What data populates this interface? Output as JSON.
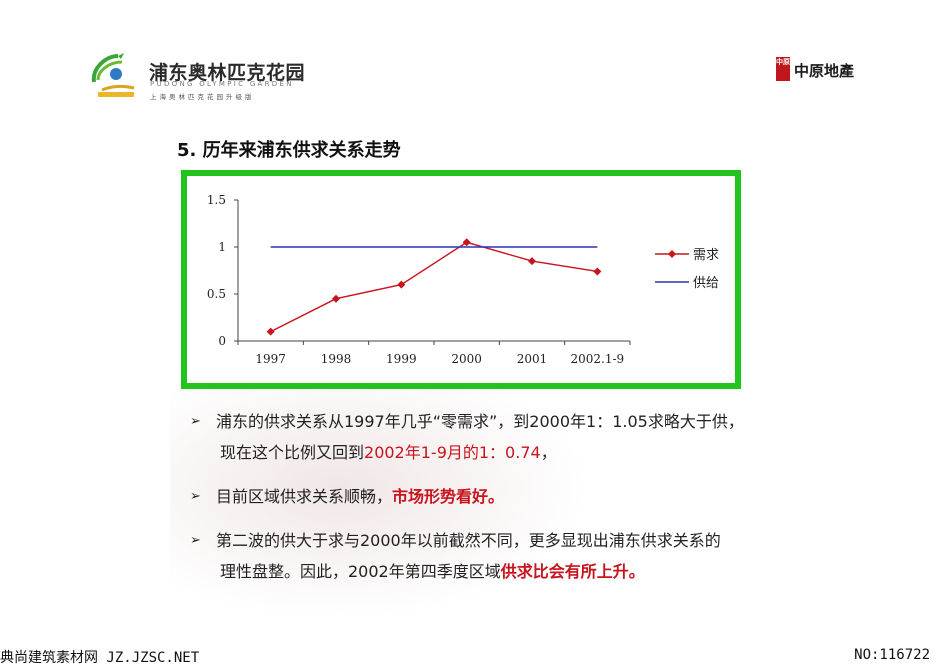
{
  "header": {
    "logo_cn": "浦东奥林匹克花园",
    "logo_en": "PUDONG OLYMPIC GARDEN",
    "logo_sub": "上海奥林匹克花园升级版",
    "brand_box": "中原",
    "brand_text": "中原地產"
  },
  "section_title": "5. 历年来浦东供求关系走势",
  "chart_data": {
    "type": "line",
    "categories": [
      "1997",
      "1998",
      "1999",
      "2000",
      "2001",
      "2002.1-9"
    ],
    "y_ticks": [
      "0",
      "0.5",
      "1",
      "1.5"
    ],
    "ylim": [
      0,
      1.5
    ],
    "series": [
      {
        "name": "需求",
        "values": [
          0.1,
          0.45,
          0.6,
          1.05,
          0.85,
          0.74
        ],
        "color": "#c8141c",
        "marker": "diamond"
      },
      {
        "name": "供给",
        "values": [
          1,
          1,
          1,
          1,
          1,
          1
        ],
        "color": "#2a34b8",
        "marker": "none"
      }
    ],
    "legend_position": "right",
    "grid": false
  },
  "bullets": [
    {
      "line1": "浦东的供求关系从1997年几乎“零需求”，到2000年1：1.05求略大于供，",
      "line2_prefix": "现在这个比例又回到",
      "line2_red": "2002年1-9月的1：0.74",
      "line2_suffix": "，"
    },
    {
      "line1_prefix": "目前区域供求关系顺畅，",
      "line1_red": "市场形势看好。"
    },
    {
      "line1": "第二波的供大于求与2000年以前截然不同，更多显现出浦东供求关系的",
      "line2_prefix": "理性盘整。因此，2002年第四季度区域",
      "line2_red": "供求比会有所上升。"
    }
  ],
  "bullet_marker": "➢",
  "footer": {
    "left": "典尚建筑素材网 JZ.JZSC.NET",
    "right": "NO:116722"
  }
}
